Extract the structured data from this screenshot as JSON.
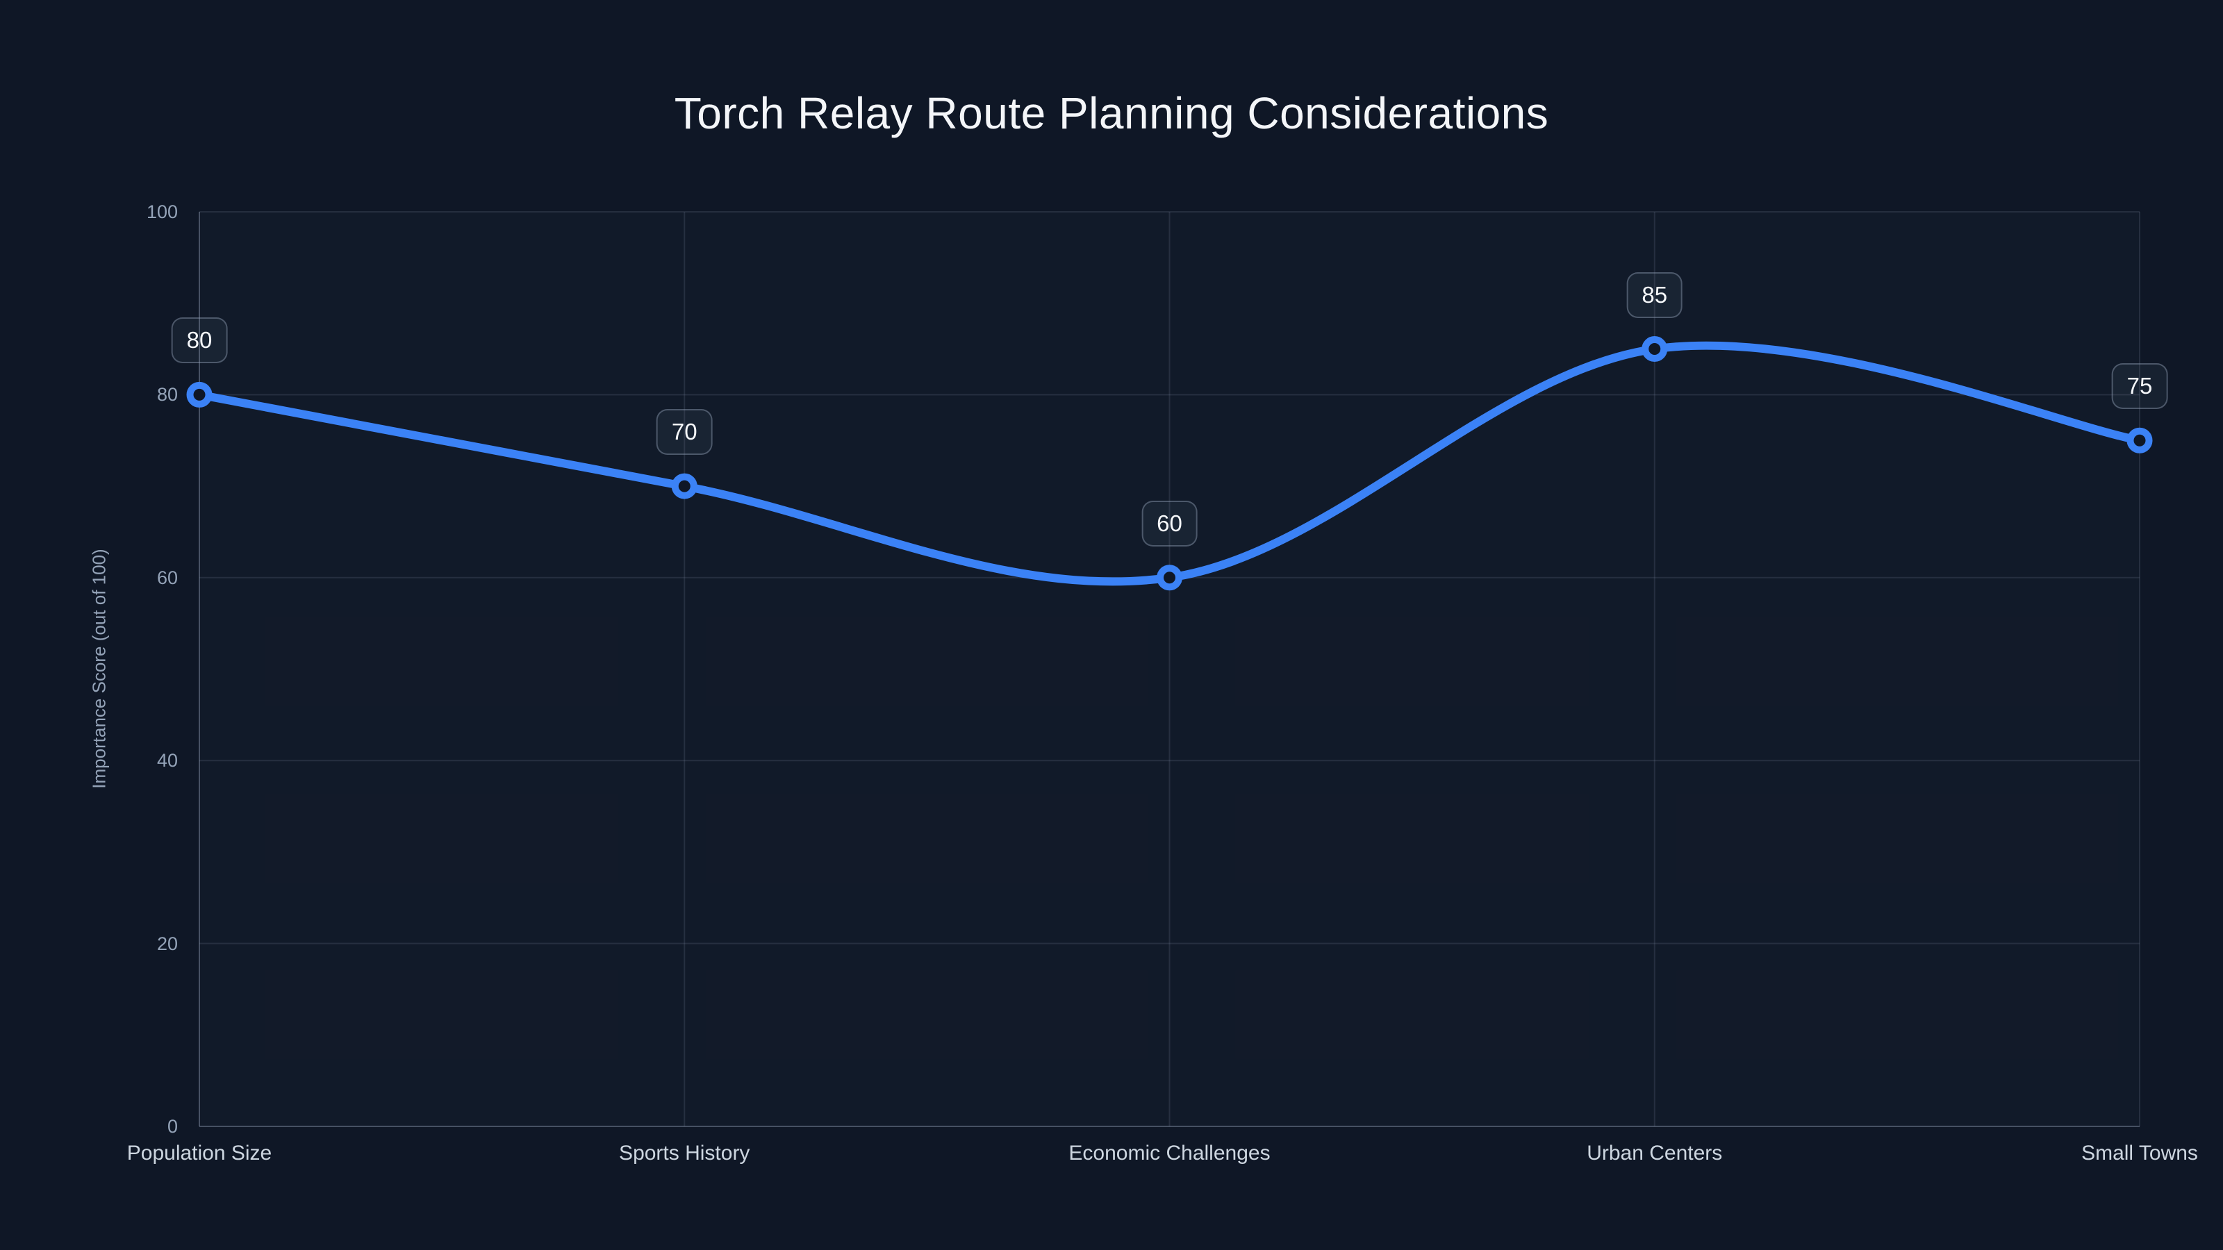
{
  "colors": {
    "background": "#0f1726",
    "line": "#3b82f6",
    "marker_ring": "#3b82f6",
    "marker_fill": "#0f1726",
    "grid": "rgba(148,163,184,0.16)",
    "axis": "rgba(148,163,184,0.30)",
    "plot_fill": "rgba(148,163,184,0.025)",
    "tick_text": "#94a3b8",
    "category_text": "#cdd6e0",
    "title_text": "#f4f6f9"
  },
  "chart_data": {
    "type": "line",
    "title": "Torch Relay Route Planning Considerations",
    "categories": [
      "Population Size",
      "Sports History",
      "Economic Challenges",
      "Urban Centers",
      "Small Towns"
    ],
    "values": [
      80,
      70,
      60,
      85,
      75
    ],
    "point_labels": [
      "80",
      "70",
      "60",
      "85",
      "75"
    ],
    "xlabel": "",
    "ylabel": "Importance Score (out of 100)",
    "ylim": [
      0,
      100
    ],
    "y_ticks": [
      0,
      20,
      40,
      60,
      80,
      100
    ],
    "grid": true,
    "line_smooth": true,
    "legend": "none"
  }
}
